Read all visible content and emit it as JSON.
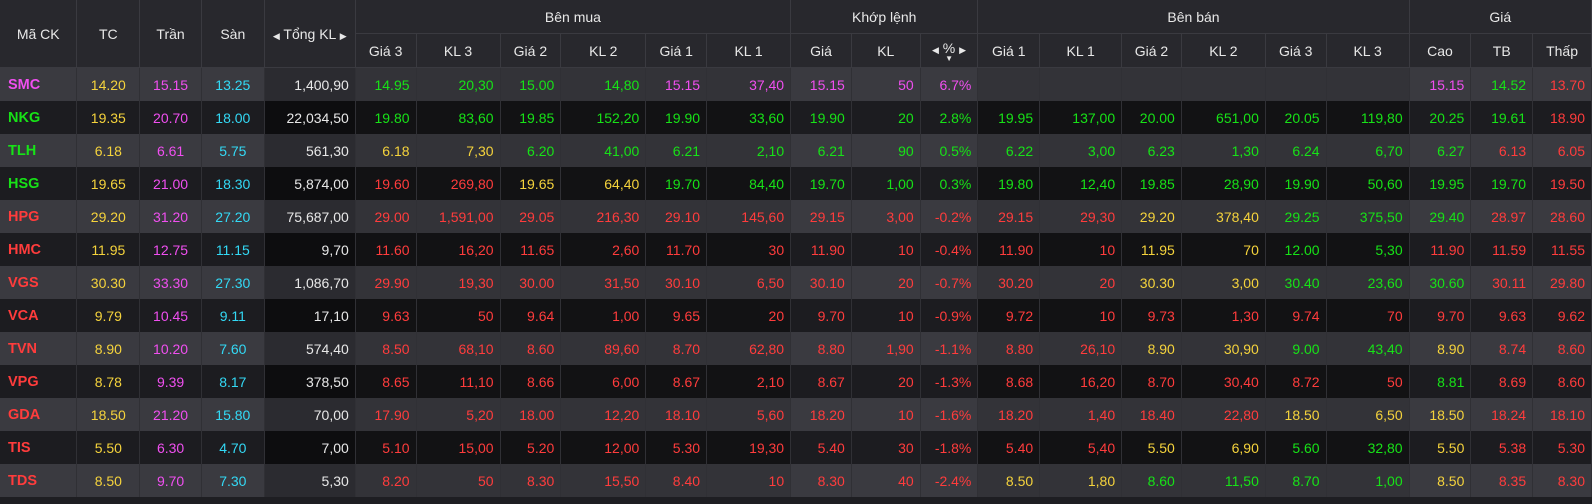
{
  "header": {
    "symbol": "Mã CK",
    "ref": "TC",
    "ceil": "Trần",
    "floor": "Sàn",
    "total_vol": "Tổng KL",
    "buy_group": "Bên mua",
    "match_group": "Khớp lệnh",
    "sell_group": "Bên bán",
    "price_group": "Giá",
    "buy_cols": [
      "Giá 3",
      "KL 3",
      "Giá 2",
      "KL 2",
      "Giá 1",
      "KL 1"
    ],
    "match_cols": [
      "Giá",
      "KL",
      "%"
    ],
    "sell_cols": [
      "Giá 1",
      "KL 1",
      "Giá 2",
      "KL 2",
      "Giá 3",
      "KL 3"
    ],
    "price_cols": [
      "Cao",
      "TB",
      "Thấp"
    ]
  },
  "icons": {
    "left_arrow": "caret-left-icon",
    "right_arrow": "caret-right-icon",
    "sort_down": "sort-down-icon"
  },
  "colors": {
    "up": "#17e217",
    "down": "#ff3c3c",
    "ref": "#f5d33c",
    "ceil": "#f04ff0",
    "floor": "#33d9f5"
  },
  "rows": [
    {
      "sym": [
        "SMC",
        "p"
      ],
      "tc": "14.20",
      "tran": "15.15",
      "san": "13.25",
      "tkl": "1,400,90",
      "buy": [
        [
          "14.95",
          "g"
        ],
        [
          "20,30",
          "g"
        ],
        [
          "15.00",
          "g"
        ],
        [
          "14,80",
          "g"
        ],
        [
          "15.15",
          "p"
        ],
        [
          "37,40",
          "p"
        ]
      ],
      "match": [
        [
          "15.15",
          "p"
        ],
        [
          "50",
          "p"
        ],
        [
          "6.7%",
          "p"
        ]
      ],
      "sell": [
        [
          "",
          ""
        ],
        [
          "",
          ""
        ],
        [
          "",
          ""
        ],
        [
          "",
          ""
        ],
        [
          "",
          ""
        ],
        [
          "",
          ""
        ]
      ],
      "price": [
        [
          "15.15",
          "p"
        ],
        [
          "14.52",
          "g"
        ],
        [
          "13.70",
          "r"
        ]
      ]
    },
    {
      "sym": [
        "NKG",
        "g"
      ],
      "tc": "19.35",
      "tran": "20.70",
      "san": "18.00",
      "tkl": "22,034,50",
      "buy": [
        [
          "19.80",
          "g"
        ],
        [
          "83,60",
          "g"
        ],
        [
          "19.85",
          "g"
        ],
        [
          "152,20",
          "g"
        ],
        [
          "19.90",
          "g"
        ],
        [
          "33,60",
          "g"
        ]
      ],
      "match": [
        [
          "19.90",
          "g"
        ],
        [
          "20",
          "g"
        ],
        [
          "2.8%",
          "g"
        ]
      ],
      "sell": [
        [
          "19.95",
          "g"
        ],
        [
          "137,00",
          "g"
        ],
        [
          "20.00",
          "g"
        ],
        [
          "651,00",
          "g"
        ],
        [
          "20.05",
          "g"
        ],
        [
          "119,80",
          "g"
        ]
      ],
      "price": [
        [
          "20.25",
          "g"
        ],
        [
          "19.61",
          "g"
        ],
        [
          "18.90",
          "r"
        ]
      ]
    },
    {
      "sym": [
        "TLH",
        "g"
      ],
      "tc": "6.18",
      "tran": "6.61",
      "san": "5.75",
      "tkl": "561,30",
      "buy": [
        [
          "6.18",
          "y"
        ],
        [
          "7,30",
          "y"
        ],
        [
          "6.20",
          "g"
        ],
        [
          "41,00",
          "g"
        ],
        [
          "6.21",
          "g"
        ],
        [
          "2,10",
          "g"
        ]
      ],
      "match": [
        [
          "6.21",
          "g"
        ],
        [
          "90",
          "g"
        ],
        [
          "0.5%",
          "g"
        ]
      ],
      "sell": [
        [
          "6.22",
          "g"
        ],
        [
          "3,00",
          "g"
        ],
        [
          "6.23",
          "g"
        ],
        [
          "1,30",
          "g"
        ],
        [
          "6.24",
          "g"
        ],
        [
          "6,70",
          "g"
        ]
      ],
      "price": [
        [
          "6.27",
          "g"
        ],
        [
          "6.13",
          "r"
        ],
        [
          "6.05",
          "r"
        ]
      ]
    },
    {
      "sym": [
        "HSG",
        "g"
      ],
      "tc": "19.65",
      "tran": "21.00",
      "san": "18.30",
      "tkl": "5,874,00",
      "buy": [
        [
          "19.60",
          "r"
        ],
        [
          "269,80",
          "r"
        ],
        [
          "19.65",
          "y"
        ],
        [
          "64,40",
          "y"
        ],
        [
          "19.70",
          "g"
        ],
        [
          "84,40",
          "g"
        ]
      ],
      "match": [
        [
          "19.70",
          "g"
        ],
        [
          "1,00",
          "g"
        ],
        [
          "0.3%",
          "g"
        ]
      ],
      "sell": [
        [
          "19.80",
          "g"
        ],
        [
          "12,40",
          "g"
        ],
        [
          "19.85",
          "g"
        ],
        [
          "28,90",
          "g"
        ],
        [
          "19.90",
          "g"
        ],
        [
          "50,60",
          "g"
        ]
      ],
      "price": [
        [
          "19.95",
          "g"
        ],
        [
          "19.70",
          "g"
        ],
        [
          "19.50",
          "r"
        ]
      ]
    },
    {
      "sym": [
        "HPG",
        "r"
      ],
      "tc": "29.20",
      "tran": "31.20",
      "san": "27.20",
      "tkl": "75,687,00",
      "buy": [
        [
          "29.00",
          "r"
        ],
        [
          "1,591,00",
          "r"
        ],
        [
          "29.05",
          "r"
        ],
        [
          "216,30",
          "r"
        ],
        [
          "29.10",
          "r"
        ],
        [
          "145,60",
          "r"
        ]
      ],
      "match": [
        [
          "29.15",
          "r"
        ],
        [
          "3,00",
          "r"
        ],
        [
          "-0.2%",
          "r"
        ]
      ],
      "sell": [
        [
          "29.15",
          "r"
        ],
        [
          "29,30",
          "r"
        ],
        [
          "29.20",
          "y"
        ],
        [
          "378,40",
          "y"
        ],
        [
          "29.25",
          "g"
        ],
        [
          "375,50",
          "g"
        ]
      ],
      "price": [
        [
          "29.40",
          "g"
        ],
        [
          "28.97",
          "r"
        ],
        [
          "28.60",
          "r"
        ]
      ]
    },
    {
      "sym": [
        "HMC",
        "r"
      ],
      "tc": "11.95",
      "tran": "12.75",
      "san": "11.15",
      "tkl": "9,70",
      "buy": [
        [
          "11.60",
          "r"
        ],
        [
          "16,20",
          "r"
        ],
        [
          "11.65",
          "r"
        ],
        [
          "2,60",
          "r"
        ],
        [
          "11.70",
          "r"
        ],
        [
          "30",
          "r"
        ]
      ],
      "match": [
        [
          "11.90",
          "r"
        ],
        [
          "10",
          "r"
        ],
        [
          "-0.4%",
          "r"
        ]
      ],
      "sell": [
        [
          "11.90",
          "r"
        ],
        [
          "10",
          "r"
        ],
        [
          "11.95",
          "y"
        ],
        [
          "70",
          "y"
        ],
        [
          "12.00",
          "g"
        ],
        [
          "5,30",
          "g"
        ]
      ],
      "price": [
        [
          "11.90",
          "r"
        ],
        [
          "11.59",
          "r"
        ],
        [
          "11.55",
          "r"
        ]
      ]
    },
    {
      "sym": [
        "VGS",
        "r"
      ],
      "tc": "30.30",
      "tran": "33.30",
      "san": "27.30",
      "tkl": "1,086,70",
      "buy": [
        [
          "29.90",
          "r"
        ],
        [
          "19,30",
          "r"
        ],
        [
          "30.00",
          "r"
        ],
        [
          "31,50",
          "r"
        ],
        [
          "30.10",
          "r"
        ],
        [
          "6,50",
          "r"
        ]
      ],
      "match": [
        [
          "30.10",
          "r"
        ],
        [
          "20",
          "r"
        ],
        [
          "-0.7%",
          "r"
        ]
      ],
      "sell": [
        [
          "30.20",
          "r"
        ],
        [
          "20",
          "r"
        ],
        [
          "30.30",
          "y"
        ],
        [
          "3,00",
          "y"
        ],
        [
          "30.40",
          "g"
        ],
        [
          "23,60",
          "g"
        ]
      ],
      "price": [
        [
          "30.60",
          "g"
        ],
        [
          "30.11",
          "r"
        ],
        [
          "29.80",
          "r"
        ]
      ]
    },
    {
      "sym": [
        "VCA",
        "r"
      ],
      "tc": "9.79",
      "tran": "10.45",
      "san": "9.11",
      "tkl": "17,10",
      "buy": [
        [
          "9.63",
          "r"
        ],
        [
          "50",
          "r"
        ],
        [
          "9.64",
          "r"
        ],
        [
          "1,00",
          "r"
        ],
        [
          "9.65",
          "r"
        ],
        [
          "20",
          "r"
        ]
      ],
      "match": [
        [
          "9.70",
          "r"
        ],
        [
          "10",
          "r"
        ],
        [
          "-0.9%",
          "r"
        ]
      ],
      "sell": [
        [
          "9.72",
          "r"
        ],
        [
          "10",
          "r"
        ],
        [
          "9.73",
          "r"
        ],
        [
          "1,30",
          "r"
        ],
        [
          "9.74",
          "r"
        ],
        [
          "70",
          "r"
        ]
      ],
      "price": [
        [
          "9.70",
          "r"
        ],
        [
          "9.63",
          "r"
        ],
        [
          "9.62",
          "r"
        ]
      ]
    },
    {
      "sym": [
        "TVN",
        "r"
      ],
      "tc": "8.90",
      "tran": "10.20",
      "san": "7.60",
      "tkl": "574,40",
      "buy": [
        [
          "8.50",
          "r"
        ],
        [
          "68,10",
          "r"
        ],
        [
          "8.60",
          "r"
        ],
        [
          "89,60",
          "r"
        ],
        [
          "8.70",
          "r"
        ],
        [
          "62,80",
          "r"
        ]
      ],
      "match": [
        [
          "8.80",
          "r"
        ],
        [
          "1,90",
          "r"
        ],
        [
          "-1.1%",
          "r"
        ]
      ],
      "sell": [
        [
          "8.80",
          "r"
        ],
        [
          "26,10",
          "r"
        ],
        [
          "8.90",
          "y"
        ],
        [
          "30,90",
          "y"
        ],
        [
          "9.00",
          "g"
        ],
        [
          "43,40",
          "g"
        ]
      ],
      "price": [
        [
          "8.90",
          "y"
        ],
        [
          "8.74",
          "r"
        ],
        [
          "8.60",
          "r"
        ]
      ]
    },
    {
      "sym": [
        "VPG",
        "r"
      ],
      "tc": "8.78",
      "tran": "9.39",
      "san": "8.17",
      "tkl": "378,50",
      "buy": [
        [
          "8.65",
          "r"
        ],
        [
          "11,10",
          "r"
        ],
        [
          "8.66",
          "r"
        ],
        [
          "6,00",
          "r"
        ],
        [
          "8.67",
          "r"
        ],
        [
          "2,10",
          "r"
        ]
      ],
      "match": [
        [
          "8.67",
          "r"
        ],
        [
          "20",
          "r"
        ],
        [
          "-1.3%",
          "r"
        ]
      ],
      "sell": [
        [
          "8.68",
          "r"
        ],
        [
          "16,20",
          "r"
        ],
        [
          "8.70",
          "r"
        ],
        [
          "30,40",
          "r"
        ],
        [
          "8.72",
          "r"
        ],
        [
          "50",
          "r"
        ]
      ],
      "price": [
        [
          "8.81",
          "g"
        ],
        [
          "8.69",
          "r"
        ],
        [
          "8.60",
          "r"
        ]
      ]
    },
    {
      "sym": [
        "GDA",
        "r"
      ],
      "tc": "18.50",
      "tran": "21.20",
      "san": "15.80",
      "tkl": "70,00",
      "buy": [
        [
          "17.90",
          "r"
        ],
        [
          "5,20",
          "r"
        ],
        [
          "18.00",
          "r"
        ],
        [
          "12,20",
          "r"
        ],
        [
          "18.10",
          "r"
        ],
        [
          "5,60",
          "r"
        ]
      ],
      "match": [
        [
          "18.20",
          "r"
        ],
        [
          "10",
          "r"
        ],
        [
          "-1.6%",
          "r"
        ]
      ],
      "sell": [
        [
          "18.20",
          "r"
        ],
        [
          "1,40",
          "r"
        ],
        [
          "18.40",
          "r"
        ],
        [
          "22,80",
          "r"
        ],
        [
          "18.50",
          "y"
        ],
        [
          "6,50",
          "y"
        ]
      ],
      "price": [
        [
          "18.50",
          "y"
        ],
        [
          "18.24",
          "r"
        ],
        [
          "18.10",
          "r"
        ]
      ]
    },
    {
      "sym": [
        "TIS",
        "r"
      ],
      "tc": "5.50",
      "tran": "6.30",
      "san": "4.70",
      "tkl": "7,00",
      "buy": [
        [
          "5.10",
          "r"
        ],
        [
          "15,00",
          "r"
        ],
        [
          "5.20",
          "r"
        ],
        [
          "12,00",
          "r"
        ],
        [
          "5.30",
          "r"
        ],
        [
          "19,30",
          "r"
        ]
      ],
      "match": [
        [
          "5.40",
          "r"
        ],
        [
          "30",
          "r"
        ],
        [
          "-1.8%",
          "r"
        ]
      ],
      "sell": [
        [
          "5.40",
          "r"
        ],
        [
          "5,40",
          "r"
        ],
        [
          "5.50",
          "y"
        ],
        [
          "6,90",
          "y"
        ],
        [
          "5.60",
          "g"
        ],
        [
          "32,80",
          "g"
        ]
      ],
      "price": [
        [
          "5.50",
          "y"
        ],
        [
          "5.38",
          "r"
        ],
        [
          "5.30",
          "r"
        ]
      ]
    },
    {
      "sym": [
        "TDS",
        "r"
      ],
      "tc": "8.50",
      "tran": "9.70",
      "san": "7.30",
      "tkl": "5,30",
      "buy": [
        [
          "8.20",
          "r"
        ],
        [
          "50",
          "r"
        ],
        [
          "8.30",
          "r"
        ],
        [
          "15,50",
          "r"
        ],
        [
          "8.40",
          "r"
        ],
        [
          "10",
          "r"
        ]
      ],
      "match": [
        [
          "8.30",
          "r"
        ],
        [
          "40",
          "r"
        ],
        [
          "-2.4%",
          "r"
        ]
      ],
      "sell": [
        [
          "8.50",
          "y"
        ],
        [
          "1,80",
          "y"
        ],
        [
          "8.60",
          "g"
        ],
        [
          "11,50",
          "g"
        ],
        [
          "8.70",
          "g"
        ],
        [
          "1,00",
          "g"
        ]
      ],
      "price": [
        [
          "8.50",
          "y"
        ],
        [
          "8.35",
          "r"
        ],
        [
          "8.30",
          "r"
        ]
      ]
    }
  ]
}
